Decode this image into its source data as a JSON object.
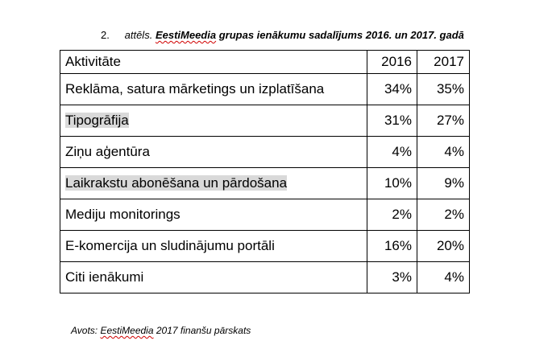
{
  "caption": {
    "number": "2.",
    "label": "attēls.",
    "brand": "EestiMeedia",
    "title_rest": "grupas ienākumu sadalījums 2016. un 2017. gadā"
  },
  "table": {
    "headers": [
      "Aktivitāte",
      "2016",
      "2017"
    ],
    "rows": [
      {
        "name": "Reklāma, satura mārketings un izplatīšana",
        "y2016": "34%",
        "y2017": "35%",
        "highlighted": false
      },
      {
        "name": "Tipogrāfija",
        "y2016": "31%",
        "y2017": "27%",
        "highlighted": true
      },
      {
        "name": "Ziņu aģentūra",
        "y2016": "4%",
        "y2017": "4%",
        "highlighted": false
      },
      {
        "name": "Laikrakstu abonēšana un pārdošana",
        "y2016": "10%",
        "y2017": "9%",
        "highlighted": true
      },
      {
        "name": "Mediju monitorings",
        "y2016": "2%",
        "y2017": "2%",
        "highlighted": false
      },
      {
        "name": "E-komercija un sludinājumu portāli",
        "y2016": "16%",
        "y2017": "20%",
        "highlighted": false
      },
      {
        "name": "Citi ienākumi",
        "y2016": "3%",
        "y2017": "4%",
        "highlighted": false
      }
    ]
  },
  "source": {
    "prefix": "Avots:",
    "brand": "EestiMeedia",
    "rest": "2017 finanšu pārskats"
  },
  "colors": {
    "highlight": "#d9d9d9",
    "spellcheck_underline": "#d00000"
  }
}
